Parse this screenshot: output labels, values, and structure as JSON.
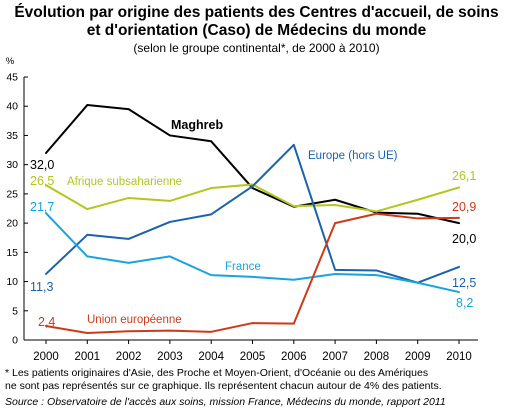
{
  "title_line1": "Évolution par origine des patients des Centres d'accueil, de soins",
  "title_line2": "et d'orientation (Caso) de Médecins du monde",
  "subtitle": "(selon le groupe continental*, de 2000 à 2010)",
  "footnote_line1": "* Les patients originaires d'Asie, des Proche et Moyen-Orient, d'Océanie ou des Amériques",
  "footnote_line2": "ne sont pas représentés sur ce graphique. Ils représentent chacun autour de 4% des patients.",
  "source": "Source : Observatoire de l'accès aux soins, mission France, Médecins du monde, rapport 2011",
  "chart_data": {
    "type": "line",
    "ylabel": "%",
    "ylim": [
      0,
      45
    ],
    "yticks": [
      0,
      5,
      10,
      15,
      20,
      25,
      30,
      35,
      40,
      45
    ],
    "grid": false,
    "x": [
      2000,
      2001,
      2002,
      2003,
      2004,
      2005,
      2006,
      2007,
      2008,
      2009,
      2010
    ],
    "series": [
      {
        "name": "Maghreb",
        "color": "#000000",
        "values": [
          32.0,
          40.2,
          39.5,
          35.0,
          34.0,
          26.0,
          22.8,
          24.0,
          21.8,
          21.6,
          20.0
        ],
        "first_label": "32,0",
        "last_label": "20,0"
      },
      {
        "name": "Afrique subsaharienne",
        "color": "#b3c61e",
        "values": [
          26.5,
          22.4,
          24.3,
          23.8,
          26.0,
          26.6,
          22.9,
          23.1,
          22.0,
          24.0,
          26.1
        ],
        "first_label": "26,5",
        "last_label": "26,1"
      },
      {
        "name": "Europe (hors UE)",
        "color": "#1a62b0",
        "values": [
          11.3,
          18.0,
          17.3,
          20.2,
          21.5,
          26.3,
          33.4,
          12.0,
          11.9,
          9.8,
          12.5
        ],
        "first_label": "11,3",
        "last_label": "12,5"
      },
      {
        "name": "France",
        "color": "#1aa3dd",
        "values": [
          21.7,
          14.3,
          13.2,
          14.3,
          11.1,
          10.8,
          10.3,
          11.3,
          11.1,
          9.8,
          8.2
        ],
        "first_label": "21,7",
        "last_label": "8,2"
      },
      {
        "name": "Union européenne",
        "color": "#cf3a16",
        "values": [
          2.4,
          1.2,
          1.5,
          1.6,
          1.4,
          2.9,
          2.8,
          20.0,
          21.6,
          20.8,
          20.9
        ],
        "first_label": "2,4",
        "last_label": "20,9"
      }
    ]
  }
}
